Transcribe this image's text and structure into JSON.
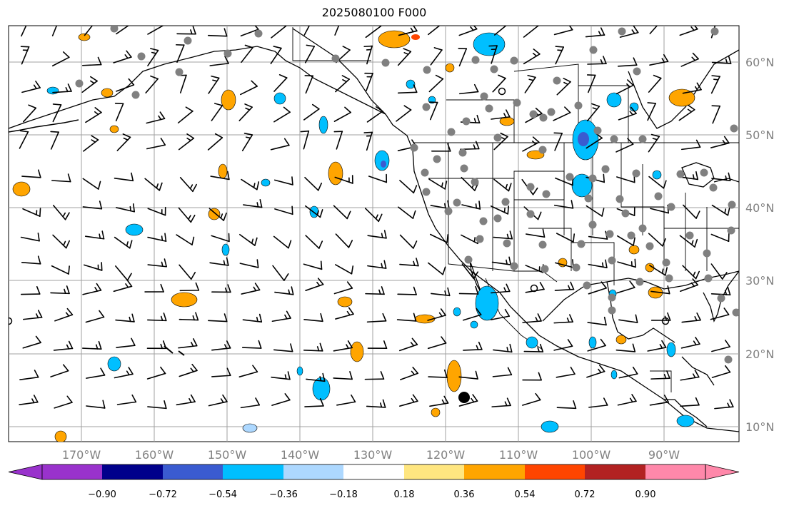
{
  "title": "2025080100 F000",
  "lon_labels": [
    "170°W",
    "160°W",
    "150°W",
    "140°W",
    "130°W",
    "120°W",
    "110°W",
    "100°W",
    "90°W"
  ],
  "lat_labels": [
    "60°N",
    "50°N",
    "40°N",
    "30°N",
    "20°N",
    "10°N"
  ],
  "colorbar": {
    "ticks": [
      "−0.90",
      "−0.72",
      "−0.54",
      "−0.36",
      "−0.18",
      "0.18",
      "0.36",
      "0.54",
      "0.72",
      "0.90"
    ],
    "colors": [
      "#9932cc",
      "#00008b",
      "#3a5bd0",
      "#00bfff",
      "#add8ff",
      "#ffffff",
      "#ffe680",
      "#ffa500",
      "#ff4500",
      "#b22222",
      "#ff88aa"
    ]
  }
}
